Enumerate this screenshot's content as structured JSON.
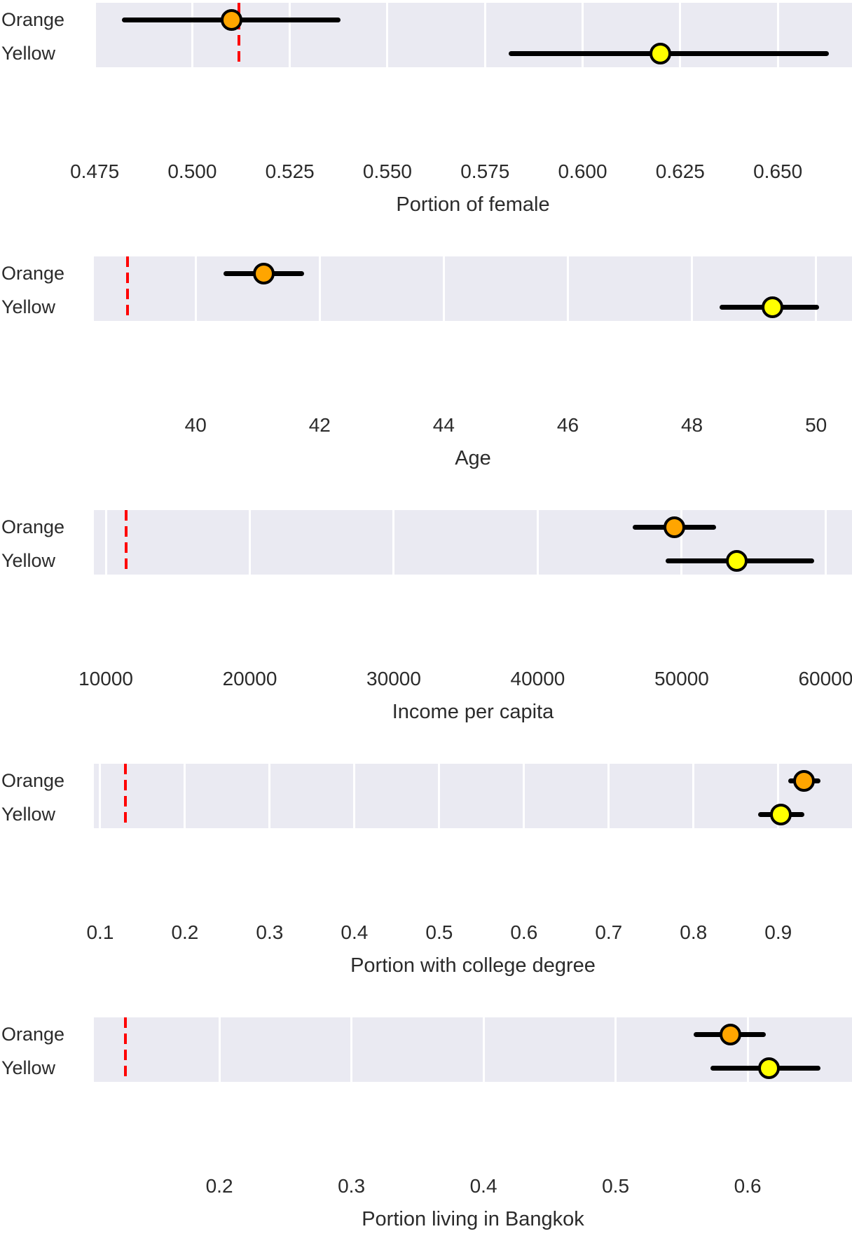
{
  "figure": {
    "description": "Five stacked dot-and-whisker panels comparing Orange and Yellow groups, each with a red dashed reference line",
    "background": "#ffffff"
  },
  "colors": {
    "band": "#eaeaf2",
    "gridline": "#ffffff",
    "bar": "#000000",
    "ref_line": "#ff0000",
    "marker_edge": "#000000",
    "orange": "#ffa500",
    "yellow": "#ffff00",
    "text": "#2b2b2b"
  },
  "chart_data": [
    {
      "type": "dot-whisker",
      "title": "Portion of female",
      "categories": [
        "Orange",
        "Yellow"
      ],
      "xlim": [
        0.4748,
        0.669
      ],
      "tick_values": [
        0.475,
        0.5,
        0.525,
        0.55,
        0.575,
        0.6,
        0.625,
        0.65
      ],
      "tick_labels": [
        "0.475",
        "0.500",
        "0.525",
        "0.550",
        "0.575",
        "0.600",
        "0.625",
        "0.650"
      ],
      "ref_line": 0.512,
      "grid": true,
      "legend": "none",
      "series": [
        {
          "name": "Orange",
          "color": "#ffa500",
          "value": 0.51,
          "ci_low": 0.482,
          "ci_high": 0.538
        },
        {
          "name": "Yellow",
          "color": "#ffff00",
          "value": 0.62,
          "ci_low": 0.581,
          "ci_high": 0.663
        }
      ]
    },
    {
      "type": "dot-whisker",
      "title": "Age",
      "categories": [
        "Orange",
        "Yellow"
      ],
      "xlim": [
        38.36,
        50.58
      ],
      "tick_values": [
        40,
        42,
        44,
        46,
        48,
        50
      ],
      "tick_labels": [
        "40",
        "42",
        "44",
        "46",
        "48",
        "50"
      ],
      "ref_line": 38.9,
      "grid": true,
      "legend": "none",
      "series": [
        {
          "name": "Orange",
          "color": "#ffa500",
          "value": 41.1,
          "ci_low": 40.45,
          "ci_high": 41.75
        },
        {
          "name": "Yellow",
          "color": "#ffff00",
          "value": 49.3,
          "ci_low": 48.45,
          "ci_high": 50.05
        }
      ]
    },
    {
      "type": "dot-whisker",
      "title": "Income per capita",
      "categories": [
        "Orange",
        "Yellow"
      ],
      "xlim": [
        9170,
        61830
      ],
      "tick_values": [
        10000,
        20000,
        30000,
        40000,
        50000,
        60000
      ],
      "tick_labels": [
        "10000",
        "20000",
        "30000",
        "40000",
        "50000",
        "60000"
      ],
      "ref_line": 11400,
      "grid": true,
      "legend": "none",
      "series": [
        {
          "name": "Orange",
          "color": "#ffa500",
          "value": 49500,
          "ci_low": 46600,
          "ci_high": 52400
        },
        {
          "name": "Yellow",
          "color": "#ffff00",
          "value": 53800,
          "ci_low": 48900,
          "ci_high": 59200
        }
      ]
    },
    {
      "type": "dot-whisker",
      "title": "Portion with college degree",
      "categories": [
        "Orange",
        "Yellow"
      ],
      "xlim": [
        0.0926,
        0.987
      ],
      "tick_values": [
        0.1,
        0.2,
        0.3,
        0.4,
        0.5,
        0.6,
        0.7,
        0.8,
        0.9
      ],
      "tick_labels": [
        "0.1",
        "0.2",
        "0.3",
        "0.4",
        "0.5",
        "0.6",
        "0.7",
        "0.8",
        "0.9"
      ],
      "ref_line": 0.13,
      "grid": true,
      "legend": "none",
      "series": [
        {
          "name": "Orange",
          "color": "#ffa500",
          "value": 0.93,
          "ci_low": 0.912,
          "ci_high": 0.95
        },
        {
          "name": "Yellow",
          "color": "#ffff00",
          "value": 0.903,
          "ci_low": 0.876,
          "ci_high": 0.931
        }
      ]
    },
    {
      "type": "dot-whisker",
      "title": "Portion living in Bangkok",
      "categories": [
        "Orange",
        "Yellow"
      ],
      "xlim": [
        0.105,
        0.679
      ],
      "tick_values": [
        0.2,
        0.3,
        0.4,
        0.5,
        0.6
      ],
      "tick_labels": [
        "0.2",
        "0.3",
        "0.4",
        "0.5",
        "0.6"
      ],
      "ref_line": 0.129,
      "grid": true,
      "legend": "none",
      "series": [
        {
          "name": "Orange",
          "color": "#ffa500",
          "value": 0.587,
          "ci_low": 0.559,
          "ci_high": 0.614
        },
        {
          "name": "Yellow",
          "color": "#ffff00",
          "value": 0.616,
          "ci_low": 0.572,
          "ci_high": 0.655
        }
      ]
    }
  ]
}
